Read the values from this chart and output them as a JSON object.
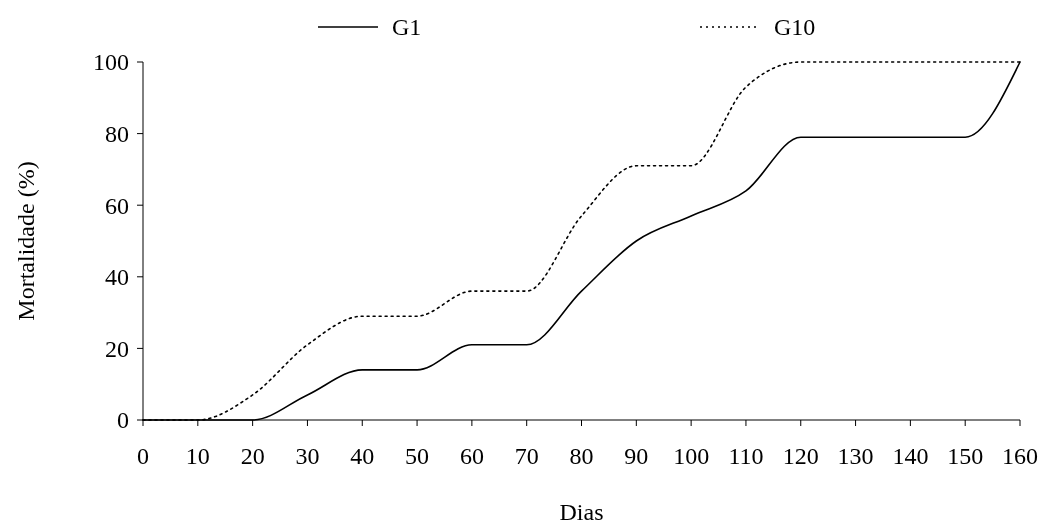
{
  "chart_data": {
    "type": "line",
    "xlabel": "Dias",
    "ylabel": "Mortalidade (%)",
    "x": [
      0,
      10,
      20,
      30,
      40,
      50,
      60,
      70,
      80,
      90,
      100,
      110,
      120,
      130,
      140,
      150,
      160
    ],
    "series": [
      {
        "name": "G1",
        "color": "#000000",
        "line_style": "solid",
        "values": [
          0,
          0,
          0,
          7,
          14,
          14,
          21,
          21,
          36,
          50,
          57,
          64,
          79,
          79,
          79,
          79,
          100
        ]
      },
      {
        "name": "G10",
        "color": "#000000",
        "line_style": "dotted",
        "values": [
          0,
          0,
          7,
          21,
          29,
          29,
          36,
          36,
          57,
          71,
          71,
          93,
          100,
          100,
          100,
          100,
          100
        ]
      }
    ],
    "xlim": [
      0,
      160
    ],
    "xticks": [
      0,
      10,
      20,
      30,
      40,
      50,
      60,
      70,
      80,
      90,
      100,
      110,
      120,
      130,
      140,
      150,
      160
    ],
    "ylim": [
      0,
      100
    ],
    "yticks": [
      0,
      20,
      40,
      60,
      80,
      100
    ],
    "legend": "top",
    "marker": "none"
  }
}
